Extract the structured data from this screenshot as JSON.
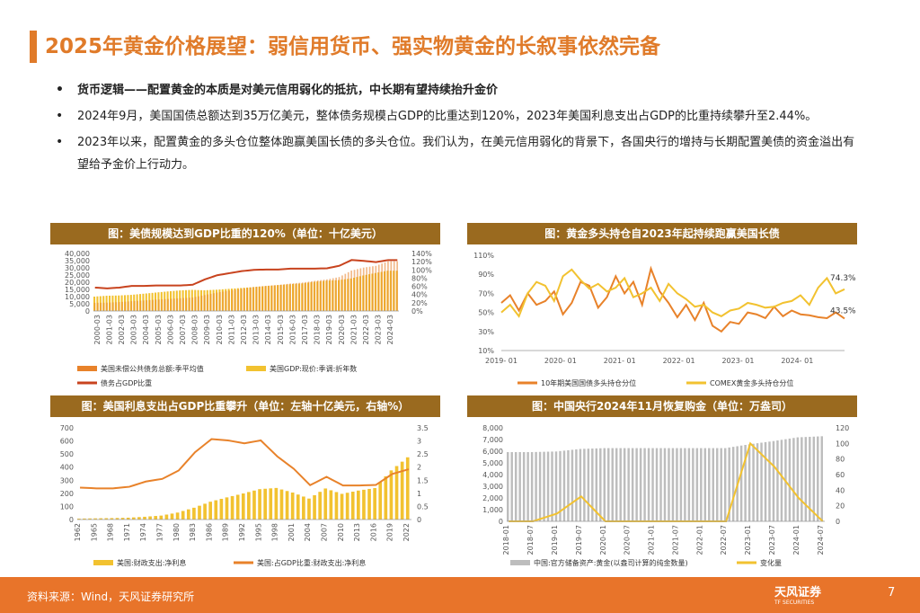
{
  "page": {
    "title": "2025年黄金价格展望：弱信用货币、强实物黄金的长叙事依然完备",
    "bullets": [
      {
        "text": "货币逻辑——配置黄金的本质是对美元信用弱化的抵抗，中长期有望持续抬升金价",
        "bold": true
      },
      {
        "text": "2024年9月，美国国债总额达到35万亿美元，整体债务规模占GDP的比重达到120%，2023年美国利息支出占GDP的比重持续攀升至2.44%。",
        "bold": false
      },
      {
        "text": "2023年以来，配置黄金的多头仓位整体跑赢美国长债的多头仓位。我们认为，在美元信用弱化的背景下，各国央行的增持与长期配置美债的资金溢出有望给予金价上行动力。",
        "bold": false
      }
    ],
    "source": "资料来源：Wind，天风证券研究所",
    "logo": "天风证券",
    "logo_sub": "TF SECURITIES",
    "page_number": "7",
    "bullet_glyph": "•"
  },
  "colors": {
    "accent": "#e07b2a",
    "header_bg": "#9a6a1f",
    "bar_yellow": "#f2c230",
    "line_red": "#c8431e",
    "line_orange": "#e8822a",
    "bar_gray": "#bdbdbd"
  },
  "chart_data": [
    {
      "type": "bar",
      "title": "图：美债规模达到GDP比重的120%（单位：十亿美元）",
      "categories": [
        "2000-03",
        "2001-03",
        "2002-03",
        "2003-03",
        "2004-03",
        "2005-03",
        "2006-03",
        "2007-03",
        "2008-03",
        "2009-03",
        "2010-03",
        "2011-03",
        "2012-03",
        "2013-03",
        "2014-03",
        "2015-03",
        "2016-03",
        "2017-03",
        "2018-03",
        "2019-03",
        "2020-03",
        "2021-03",
        "2022-03",
        "2023-03",
        "2024-03"
      ],
      "y_left_ticks": [
        "40,000",
        "35,000",
        "30,000",
        "25,000",
        "20,000",
        "15,000",
        "10,000",
        "5,000",
        "0"
      ],
      "y_right_ticks": [
        "140%",
        "120%",
        "100%",
        "80%",
        "60%",
        "40%",
        "20%",
        "0%"
      ],
      "ylim_left": [
        0,
        40000
      ],
      "ylim_right": [
        0,
        140
      ],
      "series": [
        {
          "name": "美国未偿公共债务总额:季平均值",
          "kind": "bar",
          "axis": "left",
          "values": [
            5700,
            5800,
            6200,
            6800,
            7300,
            7900,
            8400,
            8900,
            9400,
            11100,
            12800,
            14200,
            15500,
            16700,
            17500,
            18100,
            19100,
            19800,
            21000,
            22000,
            23600,
            28100,
            30200,
            31400,
            34600
          ]
        },
        {
          "name": "美国GDP:现价:季调:折年数",
          "kind": "bar",
          "axis": "left",
          "values": [
            10000,
            10600,
            10800,
            11200,
            12000,
            12800,
            13600,
            14300,
            14700,
            14400,
            14800,
            15400,
            16000,
            16600,
            17300,
            18000,
            18600,
            19200,
            20300,
            21100,
            21500,
            22600,
            24700,
            26400,
            28000
          ]
        },
        {
          "name": "债务占GDP比重",
          "kind": "line",
          "axis": "right",
          "values": [
            57,
            55,
            57,
            61,
            61,
            62,
            62,
            62,
            64,
            77,
            87,
            92,
            97,
            100,
            101,
            101,
            103,
            103,
            103,
            104,
            110,
            124,
            122,
            119,
            124
          ]
        }
      ],
      "legend_position": "bottom"
    },
    {
      "type": "line",
      "title": "图：黄金多头持仓自2023年起持续跑赢美国长债",
      "x_ticks": [
        "2019- 01",
        "2020- 01",
        "2021- 01",
        "2022- 01",
        "2023- 01",
        "2024- 01"
      ],
      "y_ticks": [
        "110%",
        "90%",
        "70%",
        "50%",
        "30%",
        "10%"
      ],
      "ylim": [
        10,
        110
      ],
      "series": [
        {
          "name": "10年期美国国债多头持仓分位",
          "values": [
            60,
            68,
            52,
            70,
            58,
            62,
            72,
            48,
            60,
            82,
            78,
            55,
            66,
            88,
            70,
            82,
            58,
            96,
            72,
            60,
            45,
            58,
            42,
            60,
            36,
            30,
            40,
            38,
            50,
            48,
            44,
            56,
            46,
            52,
            48,
            47,
            45,
            44,
            50,
            43.5
          ]
        },
        {
          "name": "COMEX黄金多头持仓分位",
          "values": [
            50,
            58,
            46,
            70,
            82,
            78,
            62,
            88,
            95,
            84,
            75,
            80,
            72,
            76,
            86,
            66,
            70,
            76,
            62,
            80,
            70,
            64,
            56,
            58,
            50,
            46,
            52,
            54,
            60,
            58,
            55,
            56,
            60,
            62,
            68,
            58,
            76,
            86,
            70,
            74.3
          ]
        }
      ],
      "annotations": [
        "74.3%",
        "43.5%"
      ],
      "legend_position": "bottom"
    },
    {
      "type": "bar",
      "title": "图：美国利息支出占GDP比重攀升（单位：左轴十亿美元，右轴%）",
      "categories": [
        "1962",
        "1965",
        "1968",
        "1971",
        "1974",
        "1977",
        "1980",
        "1983",
        "1986",
        "1989",
        "1992",
        "1995",
        "1998",
        "2001",
        "2004",
        "2007",
        "2010",
        "2013",
        "2016",
        "2019",
        "2022"
      ],
      "y_left_ticks": [
        "700",
        "600",
        "500",
        "400",
        "300",
        "200",
        "100",
        "0"
      ],
      "y_right_ticks": [
        "3.5",
        "3",
        "2.5",
        "2",
        "1.5",
        "1",
        "0.5",
        "0"
      ],
      "ylim_left": [
        0,
        700
      ],
      "ylim_right": [
        0,
        3.5
      ],
      "series": [
        {
          "name": "美国:财政支出:净利息",
          "kind": "bar",
          "axis": "left",
          "values": [
            7,
            9,
            11,
            14,
            21,
            30,
            53,
            90,
            136,
            169,
            199,
            232,
            241,
            206,
            160,
            237,
            196,
            221,
            240,
            375,
            475
          ]
        },
        {
          "name": "美国:占GDP比重:财政支出:净利息",
          "kind": "line",
          "axis": "right",
          "values": [
            1.22,
            1.19,
            1.19,
            1.25,
            1.45,
            1.55,
            1.87,
            2.57,
            3.07,
            3.02,
            2.91,
            3.02,
            2.41,
            1.94,
            1.31,
            1.63,
            1.3,
            1.3,
            1.32,
            1.74,
            1.92
          ]
        }
      ],
      "legend_position": "bottom"
    },
    {
      "type": "bar",
      "title": "图：中国央行2024年11月恢复购金（单位：万盎司）",
      "categories": [
        "2018-01",
        "2018-07",
        "2019-01",
        "2019-07",
        "2020-01",
        "2020-07",
        "2021-01",
        "2021-07",
        "2022-01",
        "2022-07",
        "2023-01",
        "2023-07",
        "2024-01",
        "2024-07"
      ],
      "y_left_ticks": [
        "8,000",
        "7,000",
        "6,000",
        "5,000",
        "4,000",
        "3,000",
        "2,000",
        "1,000",
        "0"
      ],
      "y_right_ticks": [
        "120",
        "100",
        "80",
        "60",
        "40",
        "20",
        "0"
      ],
      "ylim_left": [
        0,
        8000
      ],
      "ylim_right": [
        0,
        120
      ],
      "series": [
        {
          "name": "中国:官方储备资产:黄金(以盎司计算的纯金数量)",
          "kind": "bar",
          "axis": "left",
          "values": [
            5924,
            5924,
            5976,
            6194,
            6264,
            6264,
            6264,
            6264,
            6264,
            6264,
            6592,
            6869,
            7187,
            7280
          ]
        },
        {
          "name": "变化量",
          "kind": "line",
          "axis": "right",
          "values": [
            0,
            0,
            10,
            32,
            0,
            0,
            0,
            0,
            0,
            0,
            100,
            70,
            30,
            0
          ]
        }
      ],
      "legend_position": "bottom"
    }
  ]
}
